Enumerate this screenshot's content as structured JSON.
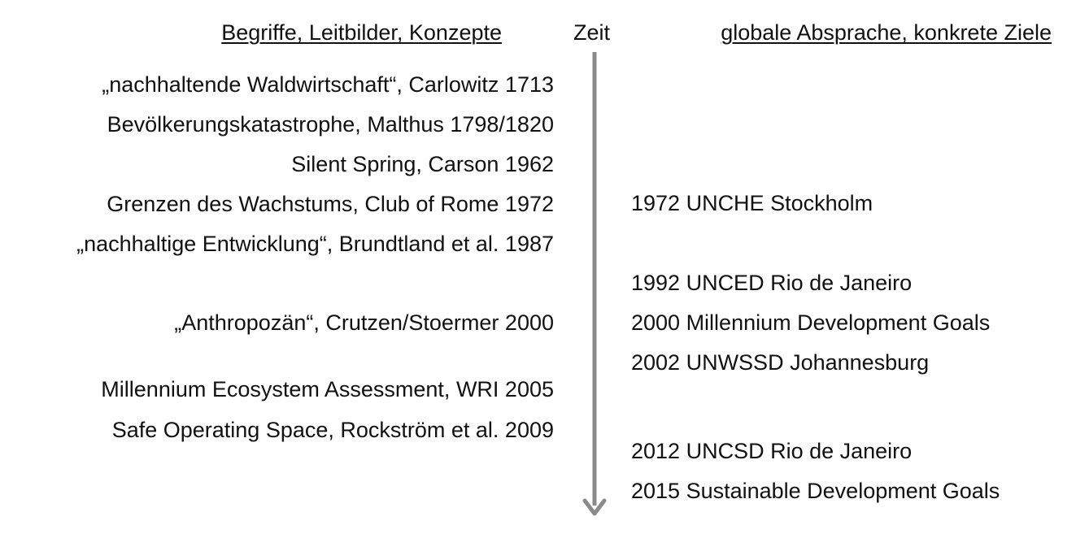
{
  "headers": {
    "left": "Begriffe, Leitbilder, Konzepte",
    "middle": "Zeit",
    "right": "globale Absprache, konkrete Ziele"
  },
  "left_items": [
    "„nachhaltende Waldwirtschaft“, Carlowitz 1713",
    "Bevölkerungskatastrophe, Malthus 1798/1820",
    "Silent Spring, Carson 1962",
    "Grenzen des Wachstums, Club of Rome 1972",
    "„nachhaltige Entwicklung“, Brundtland et al. 1987",
    "„Anthropozän“, Crutzen/Stoermer 2000",
    "Millennium Ecosystem Assessment, WRI 2005",
    "Safe Operating Space, Rockström et al. 2009"
  ],
  "right_items": [
    "1972 UNCHE Stockholm",
    "1992 UNCED Rio de Janeiro",
    "2000 Millennium Development Goals",
    "2002 UNWSSD Johannesburg",
    "2012 UNCSD Rio de Janeiro",
    "2015 Sustainable Development Goals"
  ],
  "colors": {
    "arrow": "#8a8a8a",
    "text": "#111111"
  }
}
